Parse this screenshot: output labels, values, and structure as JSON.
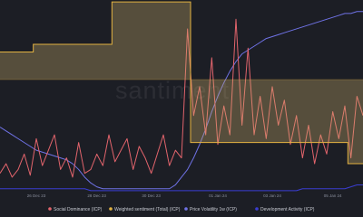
{
  "chart_data": {
    "type": "line",
    "watermark": "santiment",
    "categories": [
      null,
      null,
      null,
      null,
      null,
      null,
      "26 Dec 23",
      null,
      null,
      null,
      null,
      null,
      null,
      null,
      null,
      null,
      "28 Dec 23",
      null,
      null,
      null,
      null,
      null,
      null,
      null,
      null,
      "30 Dec 23",
      null,
      null,
      null,
      null,
      null,
      null,
      null,
      null,
      null,
      null,
      "01 Jan 24",
      null,
      null,
      null,
      null,
      null,
      null,
      null,
      null,
      "03 Jan 24",
      null,
      null,
      null,
      null,
      null,
      null,
      null,
      null,
      null,
      "05 Jan 24",
      null,
      null,
      null,
      null,
      null
    ],
    "ylim": [
      0,
      100
    ],
    "series": [
      {
        "name": "Social Dominance (ICP)",
        "color": "#e2646c",
        "values": [
          10,
          15,
          8,
          12,
          20,
          9,
          28,
          14,
          22,
          30,
          12,
          18,
          8,
          26,
          10,
          12,
          20,
          14,
          30,
          16,
          22,
          28,
          12,
          24,
          18,
          10,
          20,
          30,
          14,
          22,
          18,
          85,
          40,
          55,
          30,
          70,
          25,
          45,
          30,
          90,
          35,
          75,
          30,
          50,
          28,
          55,
          35,
          48,
          25,
          40,
          18,
          35,
          15,
          30,
          20,
          42,
          28,
          45,
          18,
          50,
          40
        ]
      },
      {
        "name": "Weighted sentiment (Total) (ICP)",
        "color": "#e3b341",
        "style": "step-area",
        "values": [
          73,
          73,
          73,
          73,
          73,
          73,
          77,
          77,
          77,
          77,
          77,
          77,
          77,
          77,
          77,
          77,
          77,
          77,
          77,
          99,
          99,
          99,
          99,
          99,
          99,
          99,
          99,
          99,
          99,
          99,
          99,
          99,
          26,
          26,
          26,
          26,
          26,
          26,
          26,
          26,
          26,
          26,
          26,
          26,
          26,
          26,
          26,
          26,
          26,
          26,
          26,
          26,
          26,
          26,
          26,
          26,
          26,
          26,
          15,
          15,
          15
        ]
      },
      {
        "name": "Price Volatility 1w (ICP)",
        "color": "#6f72e6",
        "values": [
          34,
          32,
          30,
          28,
          26,
          24,
          22,
          21,
          20,
          19,
          18,
          17,
          15,
          12,
          8,
          5,
          3,
          2,
          2,
          2,
          2,
          2,
          2,
          2,
          2,
          2,
          2,
          2,
          2,
          4,
          8,
          12,
          18,
          25,
          33,
          42,
          50,
          57,
          63,
          68,
          72,
          74,
          76,
          78,
          80,
          81,
          82,
          83,
          84,
          85,
          86,
          87,
          88,
          89,
          90,
          91,
          92,
          93,
          93,
          94,
          94
        ]
      },
      {
        "name": "Development Activity (ICP)",
        "color": "#3a3dd2",
        "values": [
          2,
          2,
          2,
          2,
          2,
          2,
          2,
          2,
          2,
          2,
          2,
          2,
          2,
          2,
          2,
          1,
          1,
          1,
          1,
          1,
          1,
          1,
          1,
          1,
          1,
          1,
          1,
          1,
          1,
          1,
          1,
          1,
          1,
          1,
          1,
          1,
          1,
          1,
          1,
          1,
          1,
          1,
          1,
          1,
          1,
          1,
          1,
          1,
          1,
          1,
          2,
          2,
          2,
          2,
          2,
          2,
          2,
          2,
          3,
          4,
          4
        ]
      }
    ]
  }
}
